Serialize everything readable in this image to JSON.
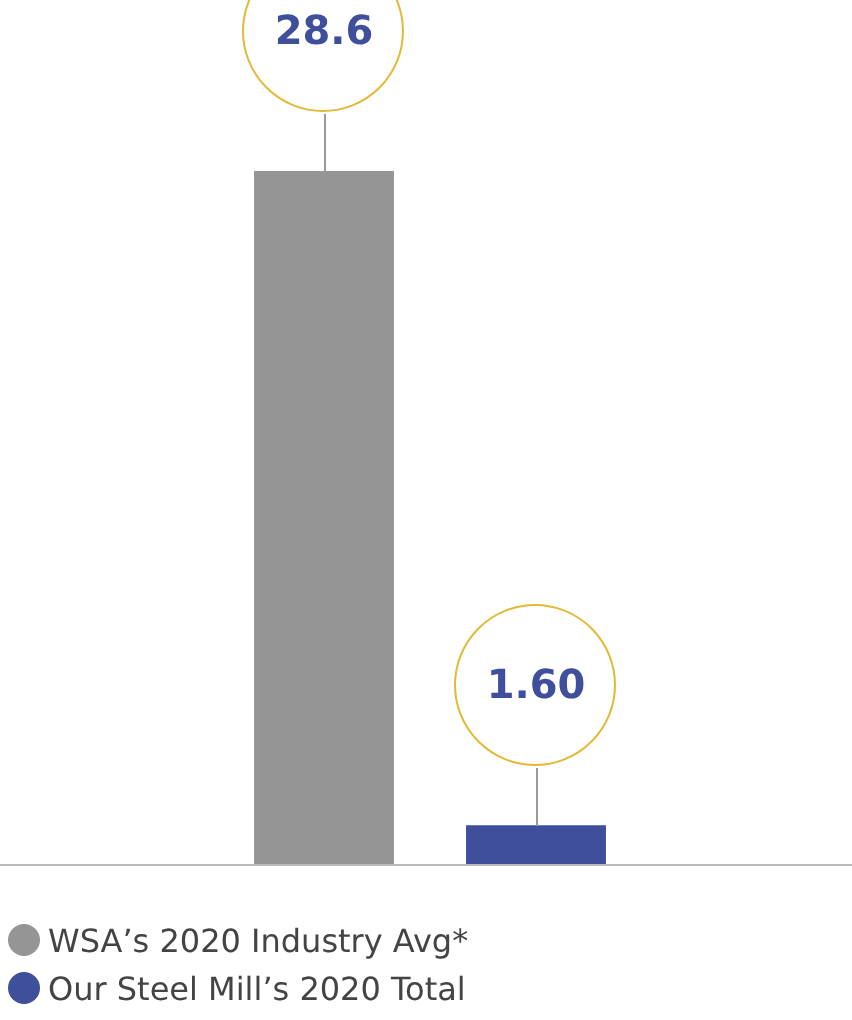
{
  "chart_data": {
    "type": "bar",
    "categories": [
      null,
      null
    ],
    "series": [
      {
        "name": "WSA’s 2020 Industry Avg*",
        "color": "#959595",
        "values": [
          28.6,
          null
        ],
        "value_labels": [
          "28.6",
          null
        ]
      },
      {
        "name": "Our Steel Mill’s 2020 Total",
        "color": "#3f4f9c",
        "values": [
          null,
          1.6
        ],
        "value_labels": [
          null,
          "1.60"
        ]
      }
    ],
    "stacked": true,
    "legend": "bottom",
    "grid": false,
    "tick_labels": false
  }
}
